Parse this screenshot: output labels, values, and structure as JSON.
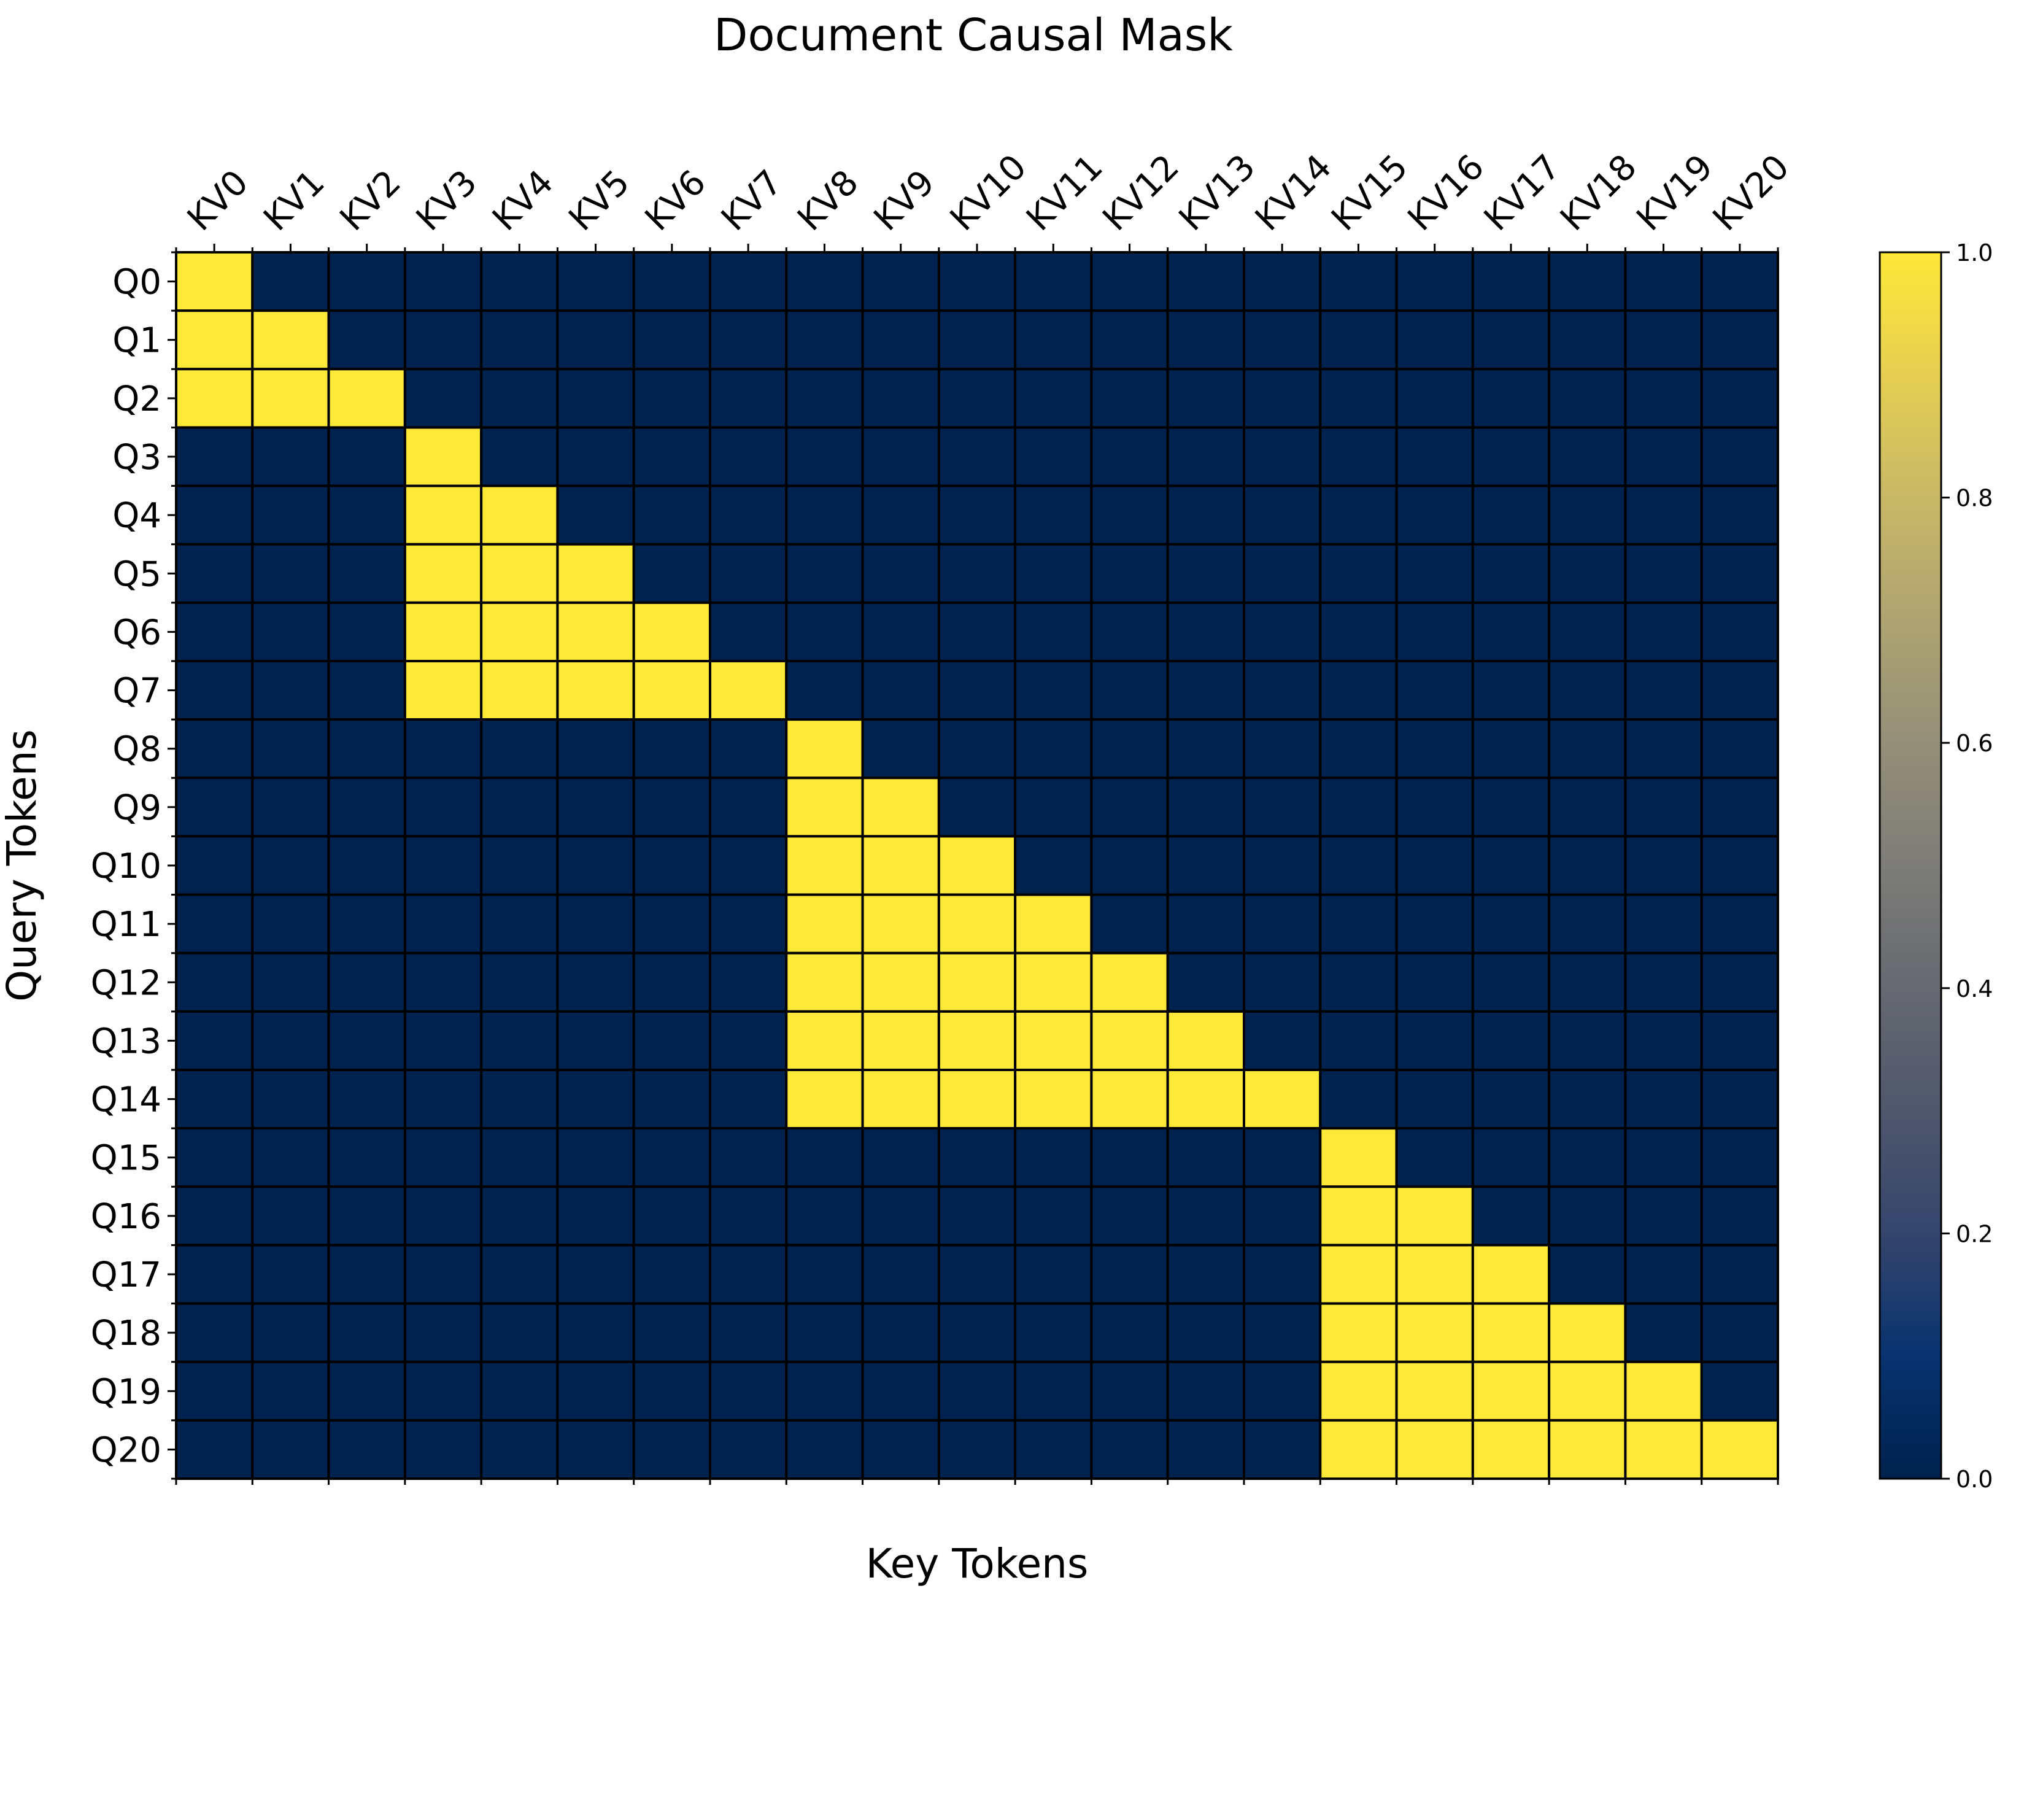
{
  "chart_data": {
    "type": "heatmap",
    "title": "Document Causal Mask",
    "xlabel": "Key Tokens",
    "ylabel": "Query Tokens",
    "x_tick_labels": [
      "KV0",
      "KV1",
      "KV2",
      "KV3",
      "KV4",
      "KV5",
      "KV6",
      "KV7",
      "KV8",
      "KV9",
      "KV10",
      "KV11",
      "KV12",
      "KV13",
      "KV14",
      "KV15",
      "KV16",
      "KV17",
      "KV18",
      "KV19",
      "KV20"
    ],
    "y_tick_labels": [
      "Q0",
      "Q1",
      "Q2",
      "Q3",
      "Q4",
      "Q5",
      "Q6",
      "Q7",
      "Q8",
      "Q9",
      "Q10",
      "Q11",
      "Q12",
      "Q13",
      "Q14",
      "Q15",
      "Q16",
      "Q17",
      "Q18",
      "Q19",
      "Q20"
    ],
    "values": [
      [
        1,
        0,
        0,
        0,
        0,
        0,
        0,
        0,
        0,
        0,
        0,
        0,
        0,
        0,
        0,
        0,
        0,
        0,
        0,
        0,
        0
      ],
      [
        1,
        1,
        0,
        0,
        0,
        0,
        0,
        0,
        0,
        0,
        0,
        0,
        0,
        0,
        0,
        0,
        0,
        0,
        0,
        0,
        0
      ],
      [
        1,
        1,
        1,
        0,
        0,
        0,
        0,
        0,
        0,
        0,
        0,
        0,
        0,
        0,
        0,
        0,
        0,
        0,
        0,
        0,
        0
      ],
      [
        0,
        0,
        0,
        1,
        0,
        0,
        0,
        0,
        0,
        0,
        0,
        0,
        0,
        0,
        0,
        0,
        0,
        0,
        0,
        0,
        0
      ],
      [
        0,
        0,
        0,
        1,
        1,
        0,
        0,
        0,
        0,
        0,
        0,
        0,
        0,
        0,
        0,
        0,
        0,
        0,
        0,
        0,
        0
      ],
      [
        0,
        0,
        0,
        1,
        1,
        1,
        0,
        0,
        0,
        0,
        0,
        0,
        0,
        0,
        0,
        0,
        0,
        0,
        0,
        0,
        0
      ],
      [
        0,
        0,
        0,
        1,
        1,
        1,
        1,
        0,
        0,
        0,
        0,
        0,
        0,
        0,
        0,
        0,
        0,
        0,
        0,
        0,
        0
      ],
      [
        0,
        0,
        0,
        1,
        1,
        1,
        1,
        1,
        0,
        0,
        0,
        0,
        0,
        0,
        0,
        0,
        0,
        0,
        0,
        0,
        0
      ],
      [
        0,
        0,
        0,
        0,
        0,
        0,
        0,
        0,
        1,
        0,
        0,
        0,
        0,
        0,
        0,
        0,
        0,
        0,
        0,
        0,
        0
      ],
      [
        0,
        0,
        0,
        0,
        0,
        0,
        0,
        0,
        1,
        1,
        0,
        0,
        0,
        0,
        0,
        0,
        0,
        0,
        0,
        0,
        0
      ],
      [
        0,
        0,
        0,
        0,
        0,
        0,
        0,
        0,
        1,
        1,
        1,
        0,
        0,
        0,
        0,
        0,
        0,
        0,
        0,
        0,
        0
      ],
      [
        0,
        0,
        0,
        0,
        0,
        0,
        0,
        0,
        1,
        1,
        1,
        1,
        0,
        0,
        0,
        0,
        0,
        0,
        0,
        0,
        0
      ],
      [
        0,
        0,
        0,
        0,
        0,
        0,
        0,
        0,
        1,
        1,
        1,
        1,
        1,
        0,
        0,
        0,
        0,
        0,
        0,
        0,
        0
      ],
      [
        0,
        0,
        0,
        0,
        0,
        0,
        0,
        0,
        1,
        1,
        1,
        1,
        1,
        1,
        0,
        0,
        0,
        0,
        0,
        0,
        0
      ],
      [
        0,
        0,
        0,
        0,
        0,
        0,
        0,
        0,
        1,
        1,
        1,
        1,
        1,
        1,
        1,
        0,
        0,
        0,
        0,
        0,
        0
      ],
      [
        0,
        0,
        0,
        0,
        0,
        0,
        0,
        0,
        0,
        0,
        0,
        0,
        0,
        0,
        0,
        1,
        0,
        0,
        0,
        0,
        0
      ],
      [
        0,
        0,
        0,
        0,
        0,
        0,
        0,
        0,
        0,
        0,
        0,
        0,
        0,
        0,
        0,
        1,
        1,
        0,
        0,
        0,
        0
      ],
      [
        0,
        0,
        0,
        0,
        0,
        0,
        0,
        0,
        0,
        0,
        0,
        0,
        0,
        0,
        0,
        1,
        1,
        1,
        0,
        0,
        0
      ],
      [
        0,
        0,
        0,
        0,
        0,
        0,
        0,
        0,
        0,
        0,
        0,
        0,
        0,
        0,
        0,
        1,
        1,
        1,
        1,
        0,
        0
      ],
      [
        0,
        0,
        0,
        0,
        0,
        0,
        0,
        0,
        0,
        0,
        0,
        0,
        0,
        0,
        0,
        1,
        1,
        1,
        1,
        1,
        0
      ],
      [
        0,
        0,
        0,
        0,
        0,
        0,
        0,
        0,
        0,
        0,
        0,
        0,
        0,
        0,
        0,
        1,
        1,
        1,
        1,
        1,
        1
      ]
    ],
    "colormap": "cividis",
    "color_low": "#00224e",
    "color_high": "#fee838",
    "color_range": [
      0,
      1
    ],
    "colorbar_ticks": [
      {
        "value": 0,
        "label": "0.0"
      },
      {
        "value": 0.2,
        "label": "0.2"
      },
      {
        "value": 0.4,
        "label": "0.4"
      },
      {
        "value": 0.6,
        "label": "0.6"
      },
      {
        "value": 0.8,
        "label": "0.8"
      },
      {
        "value": 1,
        "label": "1.0"
      }
    ],
    "grid": true,
    "x_ticks_position": "top",
    "colorbar_position": "right"
  }
}
